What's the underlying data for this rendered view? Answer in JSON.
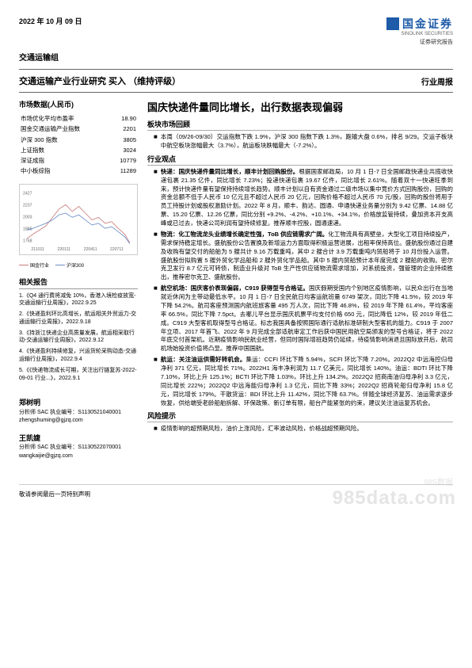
{
  "header": {
    "date": "2022 年 10 月 09 日",
    "logo_text": "国金证券",
    "logo_en": "SINOLINK SECURITIES",
    "logo_sub": "证券研究报告",
    "sector": "交通运输组",
    "title": "交通运输产业行业研究  买入 （维持评级）",
    "report_type": "行业周报"
  },
  "market": {
    "header": "市场数据(人民币)",
    "rows": [
      [
        "市场优化平均市盈率",
        "18.90"
      ],
      [
        "国金交通运输产业指数",
        "2201"
      ],
      [
        "沪深 300 指数",
        "3805"
      ],
      [
        "上证指数",
        "3024"
      ],
      [
        "深证成指",
        "10779"
      ],
      [
        "中小板综指",
        "11289"
      ]
    ]
  },
  "chart": {
    "y_ticks": [
      "2427",
      "2237",
      "2003",
      "1885",
      "1768"
    ],
    "x_ticks": [
      "211011",
      "220111",
      "220411",
      "220711"
    ],
    "legend": [
      {
        "label": "国金行业",
        "color": "#c97b7b"
      },
      {
        "label": "沪深300",
        "color": "#6b8cc4"
      }
    ],
    "line1_color": "#c97b7b",
    "line2_color": "#6b8cc4",
    "line1_path": "M5,60 L12,55 L20,50 L28,45 L36,35 L44,25 L52,20 L60,28 L68,22 L76,30 L84,38 L92,35 L100,42 L108,40 L116,48 L124,55 L130,65",
    "line2_path": "M5,50 L12,48 L20,45 L28,42 L36,38 L44,32 L52,30 L60,35 L68,32 L76,38 L84,44 L92,42 L100,48 L108,46 L116,52 L124,58 L130,66"
  },
  "related": {
    "header": "相关报告",
    "items": [
      "1.《Q4 通行费将减免 10%，香港入境检疫放宽-交通运输行业周报》，2022.9.25",
      "2.《快递盈利环比高增长，航运相关外贸运力-交通运输行业周报》，2022.9.18",
      "3.《持浙江快递企业高质量发展，航运相采取行动-交通运输行业周报》，2022.9.12",
      "4.《快递盈利持续修复，兴运货轮采购动态-交通运输行业周报》，2022.9.4",
      "5.《《快递物流成长可期，关注出行链复苏-2022-09-01 行业...》，2022.9.1"
    ]
  },
  "analysts": [
    {
      "name": "郑树明",
      "cert": "分析师 SAC 执业编号：S1130521040001",
      "email": "zhengshuming@gjzq.com"
    },
    {
      "name": "王凯婕",
      "cert": "分析师 SAC 执业编号：S1130522070001",
      "email": "wangkaijie@gjzq.com"
    }
  ],
  "main": {
    "title": "国庆快递件量同比增长，出行数据表现偏弱",
    "sec1_header": "板块市场回顾",
    "sec1_body": "本周（09/26-09/30）交运指数下跌 1.9%，沪深 300 指数下跌 1.3%，跑输大盘 0.6%，排名 9/29。交运子板块中航空板块涨幅最大（3.7%），航运板块跌幅最大（-7.2%）。",
    "sec2_header": "行业观点",
    "bullets": [
      {
        "bold": "快递：国庆快递件量同比增长，顺丰计划回购股份。",
        "text": "根据国家邮政局，10 月 1 日-7 日全国邮政快递业共揽收快递包裹 21.35 亿件，同比增长 7.23%；投递快递包裹 19.67 亿件，同比增长 2.61%。随着双十一快递旺季到来，预计快递件量有望保持持续增长趋势。顺丰计划以自有资金通过二级市场以集中竞价方式回购股份，回购的资金总额不低于人民币 10 亿元且不超过人民币 20 亿元，回购价格不超过人民币 70 元/股，回购的股份将用于员工持股计划或股权激励计划。2022 年 8 月，顺丰、韵达、圆通、申通快递业务量分别为 9.42 亿票、14.88 亿票、15.20 亿票、12.26 亿票，同比分别 +9.2%、-4.2%、+10.1%、+34.1%，价格放监管持续，叠加资本开支高峰或已过去，快递公司利润有望持续修复。推荐顺丰控股，圆通速递。"
      },
      {
        "bold": "物流：化工物流龙头业绩增长确定性强，ToB 供应链需求广阔。",
        "text": "化工物流具有高壁垒，大型化工项目持续投产，需求保持稳定增长。盛航股份公告置换及新增运力方面取得积极运营进展，出租率保持高位。盛航股份通过自建及收购有望交付的船舶为 5 艘共计 9.16 万载重吨，其中 2 艘合计 3.9 万载重吨内贸船将于 10 月份投入运营。盛航股份拟购置 5 艘外贸化学品船和 2 艘外贸化学品船。其中 5 艘内贸船预计本年度完成 2 艘船的收购。密尔克卫发行 8.7 亿元可转债，制造业升级对 ToB 生产性供应链物流需求增加，对系统投资，强管理的企业持续胜出，推荐密尔克卫、盛航股份。"
      },
      {
        "bold": "航空机场：国庆客价表现偏弱，C919 获得型号合格证。",
        "text": "国庆假期受国内个别地区疫情影响，以民众出行在当地就近休闲为主带动最低水平。10 月 1 日-7 日全民航日均客运航班量 6749 架次，同比下降 41.5%，较 2019 年下降 54.2%。航司客座预测国内航班旅客量 495 万人次，同比下降 46.8%，较 2019 年下降 61.4%，平均客座率 66.5%，同比下降 7.5pct。去哪儿平台显示国庆机票平均支付价格 650 元，同比降低 12%，较 2019 年低二成。C919 大型客机取得型号合格证。标志我国具备按照国际通行适航标准研制大型客机的能力。C919 于 2007 年立项、2017 年首飞、2022 年 9 月完成全部适航审定工作后获中国民用航空局颁发的型号合格证，将于 2022 年底交付首架机。近期疫情影响民航业经营，但同时国际增班趋势仍延续，待疫情影响消退且国际放开后，航司机场始投资价值将凸显。推荐中国国航。"
      },
      {
        "bold": "航运：关注油运供需好转机会。",
        "text": "集运：CCFI 环比下降 5.94%，SCFI 环比下降 7.20%。2022Q2 中远海控归母净利 371 亿元，同比增长 71%。2022H1 海丰净利润为 11.7 亿美元，同比增长 140%。油运：BDTI 环比下降 7.10%，环比上升 125.1%；BCTI 环比下降 1.03%，环比上升 134.2%。2022Q2 招商南油归母净利 3.3 亿元，同比增长 222%；2022Q2 中远海能归母净利 1.3 亿元，同比下降 33%；2022Q2 招商轮船归母净利 15.8 亿元，同比增长 179%。干散货运：BDI 环比上升 11.42%，同比下降 63.7%。伴随全球经济复苏、油运需求逐步恢复，供给端受老龄船舶拆解、环保政策、新订单有限，船台产能紧张的约束，建议关注油运复苏机会。"
      }
    ],
    "risk_header": "风险提示",
    "risk_body": "疫情影响的超预期风险，油价上涨风险，汇率波动风险，价格战超预期风险。"
  },
  "footer": "敬请参阅最后一页特别声明",
  "wm_top": "985数据",
  "wm_main": "985data.com"
}
